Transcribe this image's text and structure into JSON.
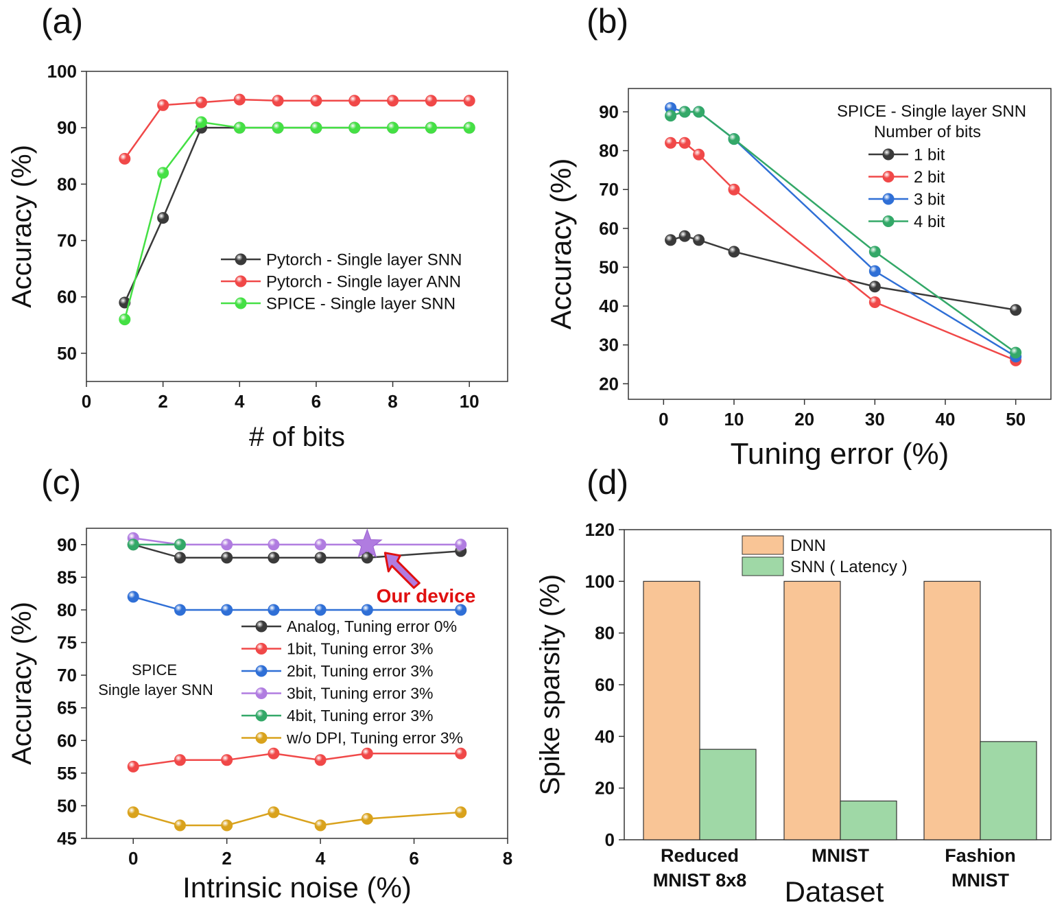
{
  "figure": {
    "panel_labels": [
      "(a)",
      "(b)",
      "(c)",
      "(d)"
    ]
  },
  "chart_data": [
    {
      "id": "a",
      "type": "line",
      "xlabel": "# of bits",
      "ylabel": "Accuracy (%)",
      "xlim": [
        0,
        11
      ],
      "ylim": [
        45,
        100
      ],
      "xticks": [
        0,
        2,
        4,
        6,
        8,
        10
      ],
      "yticks": [
        50,
        60,
        70,
        80,
        90,
        100
      ],
      "legend_position": "center-right",
      "series": [
        {
          "name": "Pytorch - Single layer SNN",
          "color": "#3a3a3a",
          "x": [
            1,
            2,
            3,
            4,
            5,
            6,
            7,
            8,
            9,
            10
          ],
          "y": [
            59,
            74,
            90,
            90,
            90,
            90,
            90,
            90,
            90,
            90
          ]
        },
        {
          "name": "Pytorch - Single layer ANN",
          "color": "#f04848",
          "x": [
            1,
            2,
            3,
            4,
            5,
            6,
            7,
            8,
            9,
            10
          ],
          "y": [
            84.5,
            94,
            94.5,
            95,
            94.8,
            94.8,
            94.8,
            94.8,
            94.8,
            94.8
          ]
        },
        {
          "name": "SPICE - Single layer SNN",
          "color": "#44e044",
          "x": [
            1,
            2,
            3,
            4,
            5,
            6,
            7,
            8,
            9,
            10
          ],
          "y": [
            56,
            82,
            91,
            90,
            90,
            90,
            90,
            90,
            90,
            90
          ]
        }
      ]
    },
    {
      "id": "b",
      "type": "line",
      "xlabel": "Tuning error (%)",
      "ylabel": "Accuracy (%)",
      "xlim": [
        -5,
        55
      ],
      "ylim": [
        16,
        96
      ],
      "xticks": [
        0,
        10,
        20,
        30,
        40,
        50
      ],
      "yticks": [
        20,
        30,
        40,
        50,
        60,
        70,
        80,
        90
      ],
      "legend_position": "top-right",
      "legend_title": [
        "SPICE - Single layer SNN",
        "Number of bits"
      ],
      "series": [
        {
          "name": "1 bit",
          "color": "#3a3a3a",
          "x": [
            1,
            3,
            5,
            10,
            30,
            50
          ],
          "y": [
            57,
            58,
            57,
            54,
            45,
            39
          ]
        },
        {
          "name": "2 bit",
          "color": "#f04848",
          "x": [
            1,
            3,
            5,
            10,
            30,
            50
          ],
          "y": [
            82,
            82,
            79,
            70,
            41,
            26
          ]
        },
        {
          "name": "3 bit",
          "color": "#2f6fd6",
          "x": [
            1,
            3,
            5,
            10,
            30,
            50
          ],
          "y": [
            91,
            90,
            90,
            83,
            49,
            27
          ]
        },
        {
          "name": "4 bit",
          "color": "#33a868",
          "x": [
            1,
            3,
            5,
            10,
            30,
            50
          ],
          "y": [
            89,
            90,
            90,
            83,
            54,
            28
          ]
        }
      ]
    },
    {
      "id": "c",
      "type": "line",
      "xlabel": "Intrinsic noise (%)",
      "ylabel": "Accuracy (%)",
      "xlim": [
        -1,
        8
      ],
      "ylim": [
        45,
        92.5
      ],
      "xticks": [
        0,
        2,
        4,
        6,
        8
      ],
      "yticks": [
        45,
        50,
        55,
        60,
        65,
        70,
        75,
        80,
        85,
        90
      ],
      "legend_position": "center-right",
      "side_text": [
        "SPICE",
        "Single layer SNN"
      ],
      "annotation": {
        "text": "Our device",
        "x": 5,
        "y": 90,
        "color": "#e01010"
      },
      "series": [
        {
          "name": "Analog, Tuning error 0%",
          "color": "#3a3a3a",
          "x": [
            0,
            1,
            2,
            3,
            4,
            5,
            7
          ],
          "y": [
            90,
            88,
            88,
            88,
            88,
            88,
            89
          ]
        },
        {
          "name": "1bit, Tuning error 3%",
          "color": "#f04848",
          "x": [
            0,
            1,
            2,
            3,
            4,
            5,
            7
          ],
          "y": [
            56,
            57,
            57,
            58,
            57,
            58,
            58
          ]
        },
        {
          "name": "2bit, Tuning error 3%",
          "color": "#2f6fd6",
          "x": [
            0,
            1,
            2,
            3,
            4,
            5,
            7
          ],
          "y": [
            82,
            80,
            80,
            80,
            80,
            80,
            80
          ]
        },
        {
          "name": "3bit, Tuning error 3%",
          "color": "#b07ce0",
          "x": [
            0,
            1,
            2,
            3,
            4,
            5,
            7
          ],
          "y": [
            91,
            90,
            90,
            90,
            90,
            90,
            90
          ]
        },
        {
          "name": "4bit, Tuning error 3%",
          "color": "#33a868",
          "x": [
            0,
            1
          ],
          "y": [
            90,
            90
          ]
        },
        {
          "name": "w/o DPI, Tuning error 3%",
          "color": "#d9a21c",
          "x": [
            0,
            1,
            2,
            3,
            4,
            5,
            7
          ],
          "y": [
            49,
            47,
            47,
            49,
            47,
            48,
            49
          ]
        }
      ]
    },
    {
      "id": "d",
      "type": "bar",
      "xlabel": "Dataset",
      "ylabel": "Spike sparsity (%)",
      "ylim": [
        0,
        120
      ],
      "yticks": [
        0,
        20,
        40,
        60,
        80,
        100,
        120
      ],
      "categories": [
        [
          "Reduced",
          "MNIST 8x8"
        ],
        [
          "MNIST"
        ],
        [
          "Fashion",
          "MNIST"
        ]
      ],
      "legend_position": "top-center",
      "series": [
        {
          "name": "DNN",
          "color": "#f9c596",
          "values": [
            100,
            100,
            100
          ]
        },
        {
          "name": "SNN ( Latency )",
          "color": "#9fd8a6",
          "values": [
            35,
            15,
            38
          ]
        }
      ]
    }
  ]
}
